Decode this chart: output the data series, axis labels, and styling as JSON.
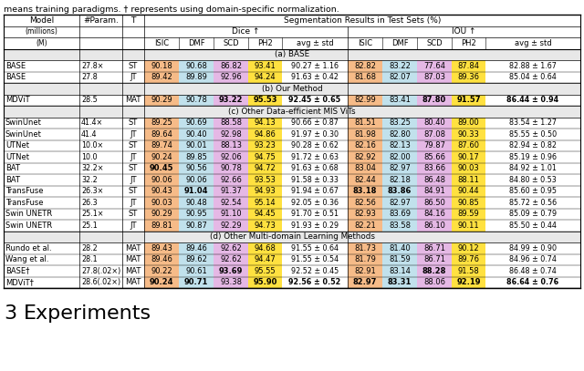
{
  "caption_text": "means training paradigms. † represents using domain-specific normalization.",
  "footer_section": "3",
  "footer_text": "Experiments",
  "sections": [
    {
      "label": "(a) BASE",
      "rows": [
        {
          "model": "BASE",
          "param": "27.8×",
          "T": "ST",
          "dice": [
            "90.18",
            "90.68",
            "86.82",
            "93.41"
          ],
          "dice_avg": "90.27 ± 1.16",
          "iou": [
            "82.82",
            "83.22",
            "77.64",
            "87.84"
          ],
          "iou_avg": "82.88 ± 1.67",
          "bold_dice": [
            false,
            false,
            false,
            false
          ],
          "bold_iou": [
            false,
            false,
            false,
            false
          ],
          "bold_dice_avg": false,
          "bold_iou_avg": false
        },
        {
          "model": "BASE",
          "param": "27.8",
          "T": "JT",
          "dice": [
            "89.42",
            "89.89",
            "92.96",
            "94.24"
          ],
          "dice_avg": "91.63 ± 0.42",
          "iou": [
            "81.68",
            "82.07",
            "87.03",
            "89.36"
          ],
          "iou_avg": "85.04 ± 0.64",
          "bold_dice": [
            false,
            false,
            false,
            false
          ],
          "bold_iou": [
            false,
            false,
            false,
            false
          ],
          "bold_dice_avg": false,
          "bold_iou_avg": false
        }
      ]
    },
    {
      "label": "(b) Our Method",
      "rows": [
        {
          "model": "MDViT",
          "param": "28.5",
          "T": "MAT",
          "dice": [
            "90.29",
            "90.78",
            "93.22",
            "95.53"
          ],
          "dice_avg": "92.45 ± 0.65",
          "iou": [
            "82.99",
            "83.41",
            "87.80",
            "91.57"
          ],
          "iou_avg": "86.44 ± 0.94",
          "bold_dice": [
            false,
            false,
            true,
            true
          ],
          "bold_iou": [
            false,
            false,
            true,
            true
          ],
          "bold_dice_avg": true,
          "bold_iou_avg": true
        }
      ]
    },
    {
      "label": "(c) Other Data-efficient MIS ViTs",
      "rows": [
        {
          "model": "SwinUnet",
          "param": "41.4×",
          "T": "ST",
          "dice": [
            "89.25",
            "90.69",
            "88.58",
            "94.13"
          ],
          "dice_avg": "90.66 ± 0.87",
          "iou": [
            "81.51",
            "83.25",
            "80.40",
            "89.00"
          ],
          "iou_avg": "83.54 ± 1.27",
          "bold_dice": [
            false,
            false,
            false,
            false
          ],
          "bold_iou": [
            false,
            false,
            false,
            false
          ],
          "bold_dice_avg": false,
          "bold_iou_avg": false
        },
        {
          "model": "SwinUnet",
          "param": "41.4",
          "T": "JT",
          "dice": [
            "89.64",
            "90.40",
            "92.98",
            "94.86"
          ],
          "dice_avg": "91.97 ± 0.30",
          "iou": [
            "81.98",
            "82.80",
            "87.08",
            "90.33"
          ],
          "iou_avg": "85.55 ± 0.50",
          "bold_dice": [
            false,
            false,
            false,
            false
          ],
          "bold_iou": [
            false,
            false,
            false,
            false
          ],
          "bold_dice_avg": false,
          "bold_iou_avg": false
        },
        {
          "model": "UTNet",
          "param": "10.0×",
          "T": "ST",
          "dice": [
            "89.74",
            "90.01",
            "88.13",
            "93.23"
          ],
          "dice_avg": "90.28 ± 0.62",
          "iou": [
            "82.16",
            "82.13",
            "79.87",
            "87.60"
          ],
          "iou_avg": "82.94 ± 0.82",
          "bold_dice": [
            false,
            false,
            false,
            false
          ],
          "bold_iou": [
            false,
            false,
            false,
            false
          ],
          "bold_dice_avg": false,
          "bold_iou_avg": false
        },
        {
          "model": "UTNet",
          "param": "10.0",
          "T": "JT",
          "dice": [
            "90.24",
            "89.85",
            "92.06",
            "94.75"
          ],
          "dice_avg": "91.72 ± 0.63",
          "iou": [
            "82.92",
            "82.00",
            "85.66",
            "90.17"
          ],
          "iou_avg": "85.19 ± 0.96",
          "bold_dice": [
            false,
            false,
            false,
            false
          ],
          "bold_iou": [
            false,
            false,
            false,
            false
          ],
          "bold_dice_avg": false,
          "bold_iou_avg": false
        },
        {
          "model": "BAT",
          "param": "32.2×",
          "T": "ST",
          "dice": [
            "90.45",
            "90.56",
            "90.78",
            "94.72"
          ],
          "dice_avg": "91.63 ± 0.68",
          "iou": [
            "83.04",
            "82.97",
            "83.66",
            "90.03"
          ],
          "iou_avg": "84.92 ± 1.01",
          "bold_dice": [
            true,
            false,
            false,
            false
          ],
          "bold_iou": [
            false,
            false,
            false,
            false
          ],
          "bold_dice_avg": false,
          "bold_iou_avg": false
        },
        {
          "model": "BAT",
          "param": "32.2",
          "T": "JT",
          "dice": [
            "90.06",
            "90.06",
            "92.66",
            "93.53"
          ],
          "dice_avg": "91.58 ± 0.33",
          "iou": [
            "82.44",
            "82.18",
            "86.48",
            "88.11"
          ],
          "iou_avg": "84.80 ± 0.53",
          "bold_dice": [
            false,
            false,
            false,
            false
          ],
          "bold_iou": [
            false,
            false,
            false,
            false
          ],
          "bold_dice_avg": false,
          "bold_iou_avg": false
        },
        {
          "model": "TransFuse",
          "param": "26.3×",
          "T": "ST",
          "dice": [
            "90.43",
            "91.04",
            "91.37",
            "94.93"
          ],
          "dice_avg": "91.94 ± 0.67",
          "iou": [
            "83.18",
            "83.86",
            "84.91",
            "90.44"
          ],
          "iou_avg": "85.60 ± 0.95",
          "bold_dice": [
            false,
            true,
            false,
            false
          ],
          "bold_iou": [
            true,
            true,
            false,
            false
          ],
          "bold_dice_avg": false,
          "bold_iou_avg": false
        },
        {
          "model": "TransFuse",
          "param": "26.3",
          "T": "JT",
          "dice": [
            "90.03",
            "90.48",
            "92.54",
            "95.14"
          ],
          "dice_avg": "92.05 ± 0.36",
          "iou": [
            "82.56",
            "82.97",
            "86.50",
            "90.85"
          ],
          "iou_avg": "85.72 ± 0.56",
          "bold_dice": [
            false,
            false,
            false,
            false
          ],
          "bold_iou": [
            false,
            false,
            false,
            false
          ],
          "bold_dice_avg": false,
          "bold_iou_avg": false
        },
        {
          "model": "Swin UNETR",
          "param": "25.1×",
          "T": "ST",
          "dice": [
            "90.29",
            "90.95",
            "91.10",
            "94.45"
          ],
          "dice_avg": "91.70 ± 0.51",
          "iou": [
            "82.93",
            "83.69",
            "84.16",
            "89.59"
          ],
          "iou_avg": "85.09 ± 0.79",
          "bold_dice": [
            false,
            false,
            false,
            false
          ],
          "bold_iou": [
            false,
            false,
            false,
            false
          ],
          "bold_dice_avg": false,
          "bold_iou_avg": false
        },
        {
          "model": "Swin UNETR",
          "param": "25.1",
          "T": "JT",
          "dice": [
            "89.81",
            "90.87",
            "92.29",
            "94.73"
          ],
          "dice_avg": "91.93 ± 0.29",
          "iou": [
            "82.21",
            "83.58",
            "86.10",
            "90.11"
          ],
          "iou_avg": "85.50 ± 0.44",
          "bold_dice": [
            false,
            false,
            false,
            false
          ],
          "bold_iou": [
            false,
            false,
            false,
            false
          ],
          "bold_dice_avg": false,
          "bold_iou_avg": false
        }
      ]
    },
    {
      "label": "(d) Other Multi-domain Learning Methods",
      "rows": [
        {
          "model": "Rundo et al.",
          "param": "28.2",
          "T": "MAT",
          "dice": [
            "89.43",
            "89.46",
            "92.62",
            "94.68"
          ],
          "dice_avg": "91.55 ± 0.64",
          "iou": [
            "81.73",
            "81.40",
            "86.71",
            "90.12"
          ],
          "iou_avg": "84.99 ± 0.90",
          "bold_dice": [
            false,
            false,
            false,
            false
          ],
          "bold_iou": [
            false,
            false,
            false,
            false
          ],
          "bold_dice_avg": false,
          "bold_iou_avg": false
        },
        {
          "model": "Wang et al.",
          "param": "28.1",
          "T": "MAT",
          "dice": [
            "89.46",
            "89.62",
            "92.62",
            "94.47"
          ],
          "dice_avg": "91.55 ± 0.54",
          "iou": [
            "81.79",
            "81.59",
            "86.71",
            "89.76"
          ],
          "iou_avg": "84.96 ± 0.74",
          "bold_dice": [
            false,
            false,
            false,
            false
          ],
          "bold_iou": [
            false,
            false,
            false,
            false
          ],
          "bold_dice_avg": false,
          "bold_iou_avg": false
        },
        {
          "model": "BASE†",
          "param": "27.8(.02×)",
          "T": "MAT",
          "dice": [
            "90.22",
            "90.61",
            "93.69",
            "95.55"
          ],
          "dice_avg": "92.52 ± 0.45",
          "iou": [
            "82.91",
            "83.14",
            "88.28",
            "91.58"
          ],
          "iou_avg": "86.48 ± 0.74",
          "bold_dice": [
            false,
            false,
            true,
            false
          ],
          "bold_iou": [
            false,
            false,
            true,
            false
          ],
          "bold_dice_avg": false,
          "bold_iou_avg": false
        },
        {
          "model": "MDViT†",
          "param": "28.6(.02×)",
          "T": "MAT",
          "dice": [
            "90.24",
            "90.71",
            "93.38",
            "95.90"
          ],
          "dice_avg": "92.56 ± 0.52",
          "iou": [
            "82.97",
            "83.31",
            "88.06",
            "92.19"
          ],
          "iou_avg": "86.64 ± 0.76",
          "bold_dice": [
            true,
            true,
            false,
            true
          ],
          "bold_iou": [
            true,
            true,
            false,
            true
          ],
          "bold_dice_avg": true,
          "bold_iou_avg": true
        }
      ]
    }
  ],
  "col_colors": [
    "#F4A460",
    "#ADD8E6",
    "#DDA0DD",
    "#FFD700"
  ]
}
